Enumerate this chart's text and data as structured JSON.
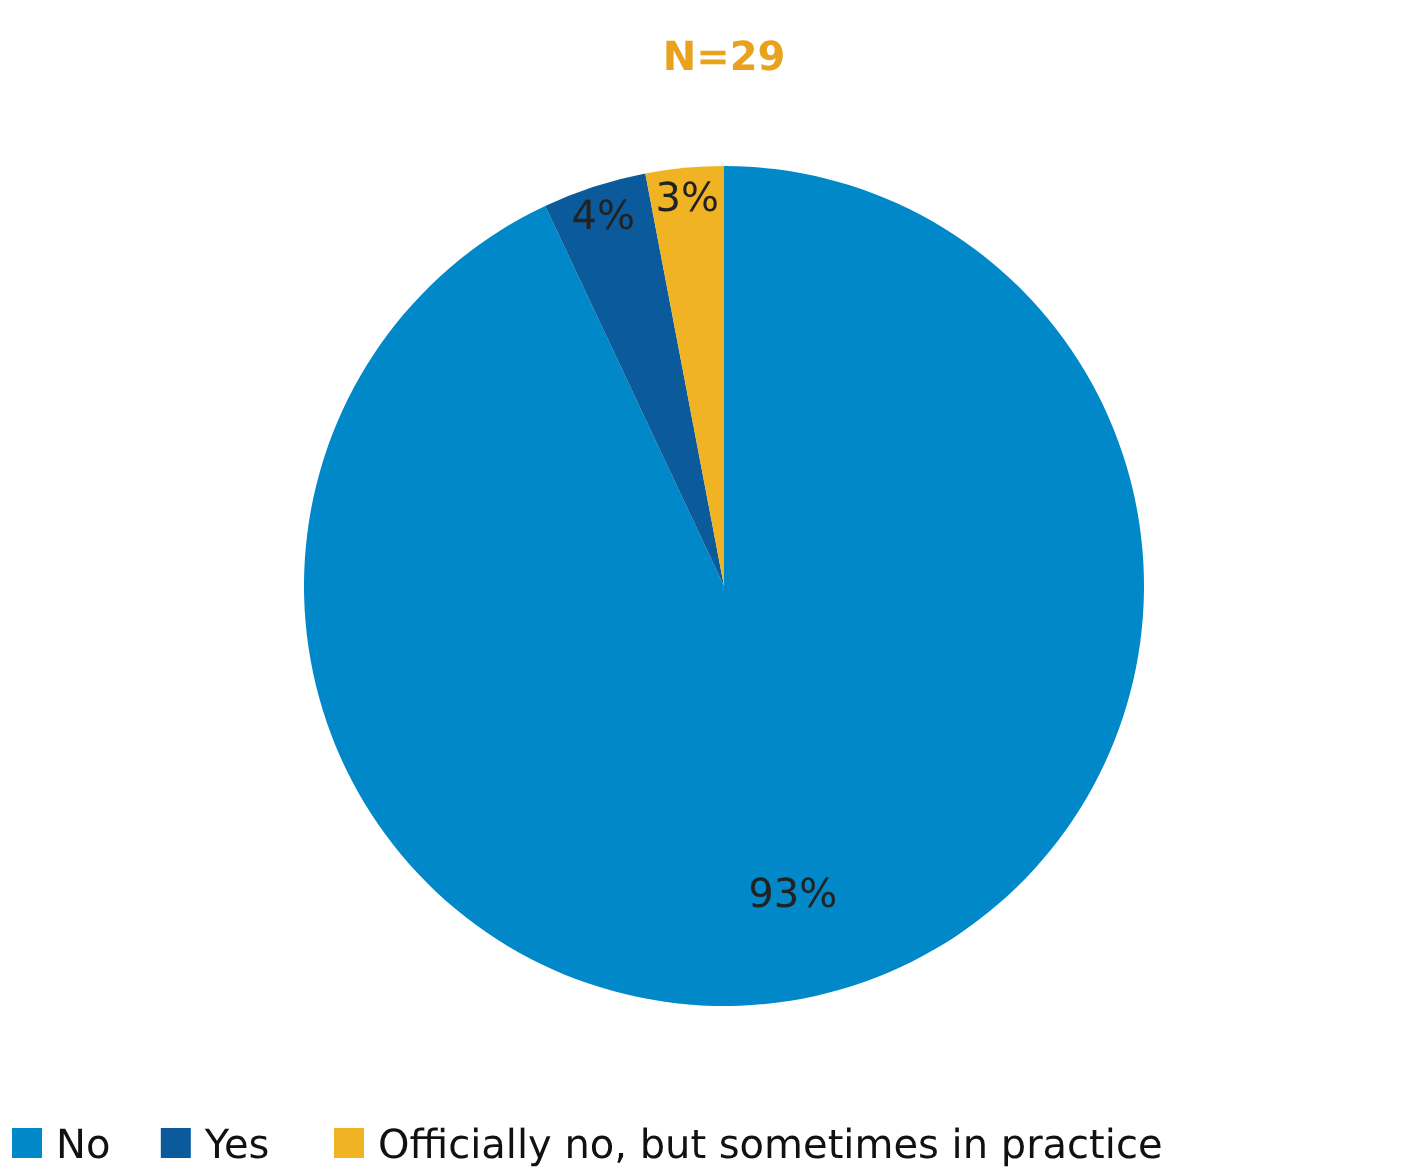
{
  "chart_data": {
    "type": "pie",
    "title": "N=29",
    "categories": [
      "No",
      "Yes",
      "Officially no, but sometimes in practice"
    ],
    "values": [
      93,
      4,
      3
    ],
    "colors": [
      "#0088c8",
      "#0b5a9b",
      "#f0b323"
    ],
    "value_labels": [
      "93%",
      "4%",
      "3%"
    ],
    "legend": "bottom"
  }
}
